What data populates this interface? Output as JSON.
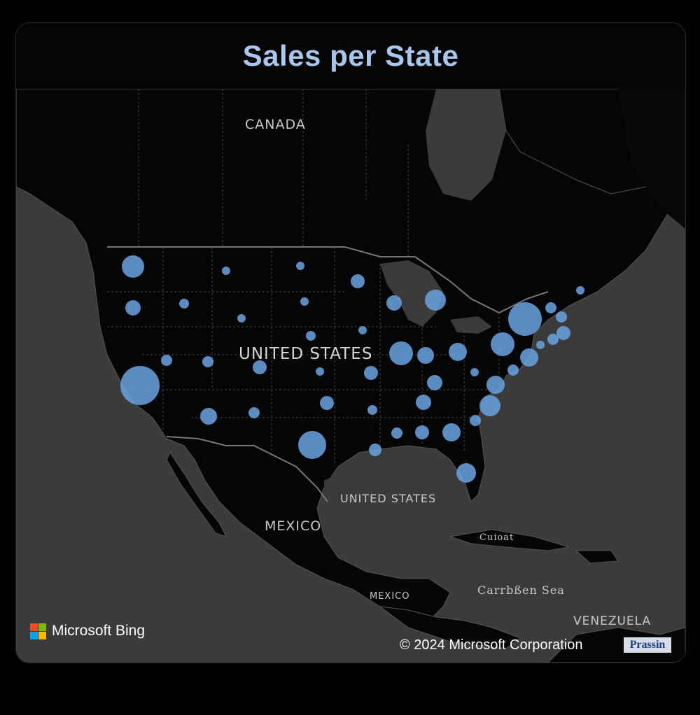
{
  "title": "Sales per State",
  "map_labels": {
    "canada": "CANADA",
    "united_states": "UNITED STATES",
    "gulf_united_states": "UNITED STATES",
    "mexico": "MEXICO",
    "mexico_small": "MEXICO",
    "cuba": "Cuioat",
    "caribbean": "Carrbßen Sea",
    "venezuela": "VENEZUELA"
  },
  "attribution": {
    "bing": "Microsoft Bing",
    "copyright": "© 2024 Microsoft Corporation",
    "badge": "Prassin"
  },
  "colors": {
    "bubble": "#6aa3e3",
    "title": "#a9c7ec",
    "land": "#050505",
    "water": "#3b3b3b",
    "microsoft_logo": [
      "#f25022",
      "#7fba00",
      "#00a4ef",
      "#ffb900"
    ]
  },
  "bubbles": [
    {
      "region": "WA",
      "size": 16
    },
    {
      "region": "OR",
      "size": 11
    },
    {
      "region": "CA",
      "size": 28
    },
    {
      "region": "NV",
      "size": 8
    },
    {
      "region": "ID",
      "size": 7
    },
    {
      "region": "MT",
      "size": 6
    },
    {
      "region": "WY",
      "size": 6
    },
    {
      "region": "UT",
      "size": 8
    },
    {
      "region": "AZ",
      "size": 12
    },
    {
      "region": "CO",
      "size": 10
    },
    {
      "region": "NM",
      "size": 8
    },
    {
      "region": "ND",
      "size": 6
    },
    {
      "region": "SD",
      "size": 6
    },
    {
      "region": "NE",
      "size": 7
    },
    {
      "region": "KS",
      "size": 6
    },
    {
      "region": "OK",
      "size": 10
    },
    {
      "region": "TX",
      "size": 20
    },
    {
      "region": "MN",
      "size": 10
    },
    {
      "region": "IA",
      "size": 6
    },
    {
      "region": "MO",
      "size": 10
    },
    {
      "region": "AR",
      "size": 7
    },
    {
      "region": "LA",
      "size": 9
    },
    {
      "region": "WI",
      "size": 11
    },
    {
      "region": "IL",
      "size": 17
    },
    {
      "region": "MI",
      "size": 15
    },
    {
      "region": "IN",
      "size": 12
    },
    {
      "region": "OH",
      "size": 13
    },
    {
      "region": "KY",
      "size": 11
    },
    {
      "region": "TN",
      "size": 11
    },
    {
      "region": "MS",
      "size": 8
    },
    {
      "region": "AL",
      "size": 10
    },
    {
      "region": "GA",
      "size": 13
    },
    {
      "region": "FL",
      "size": 14
    },
    {
      "region": "SC",
      "size": 8
    },
    {
      "region": "NC",
      "size": 15
    },
    {
      "region": "VA",
      "size": 13
    },
    {
      "region": "WV",
      "size": 6
    },
    {
      "region": "PA",
      "size": 17
    },
    {
      "region": "NY",
      "size": 24
    },
    {
      "region": "MD",
      "size": 8
    },
    {
      "region": "DE",
      "size": 6
    },
    {
      "region": "NJ",
      "size": 13
    },
    {
      "region": "CT",
      "size": 8
    },
    {
      "region": "MA",
      "size": 10
    },
    {
      "region": "VT",
      "size": 8
    },
    {
      "region": "ME",
      "size": 6
    },
    {
      "region": "RI",
      "size": 8
    }
  ]
}
